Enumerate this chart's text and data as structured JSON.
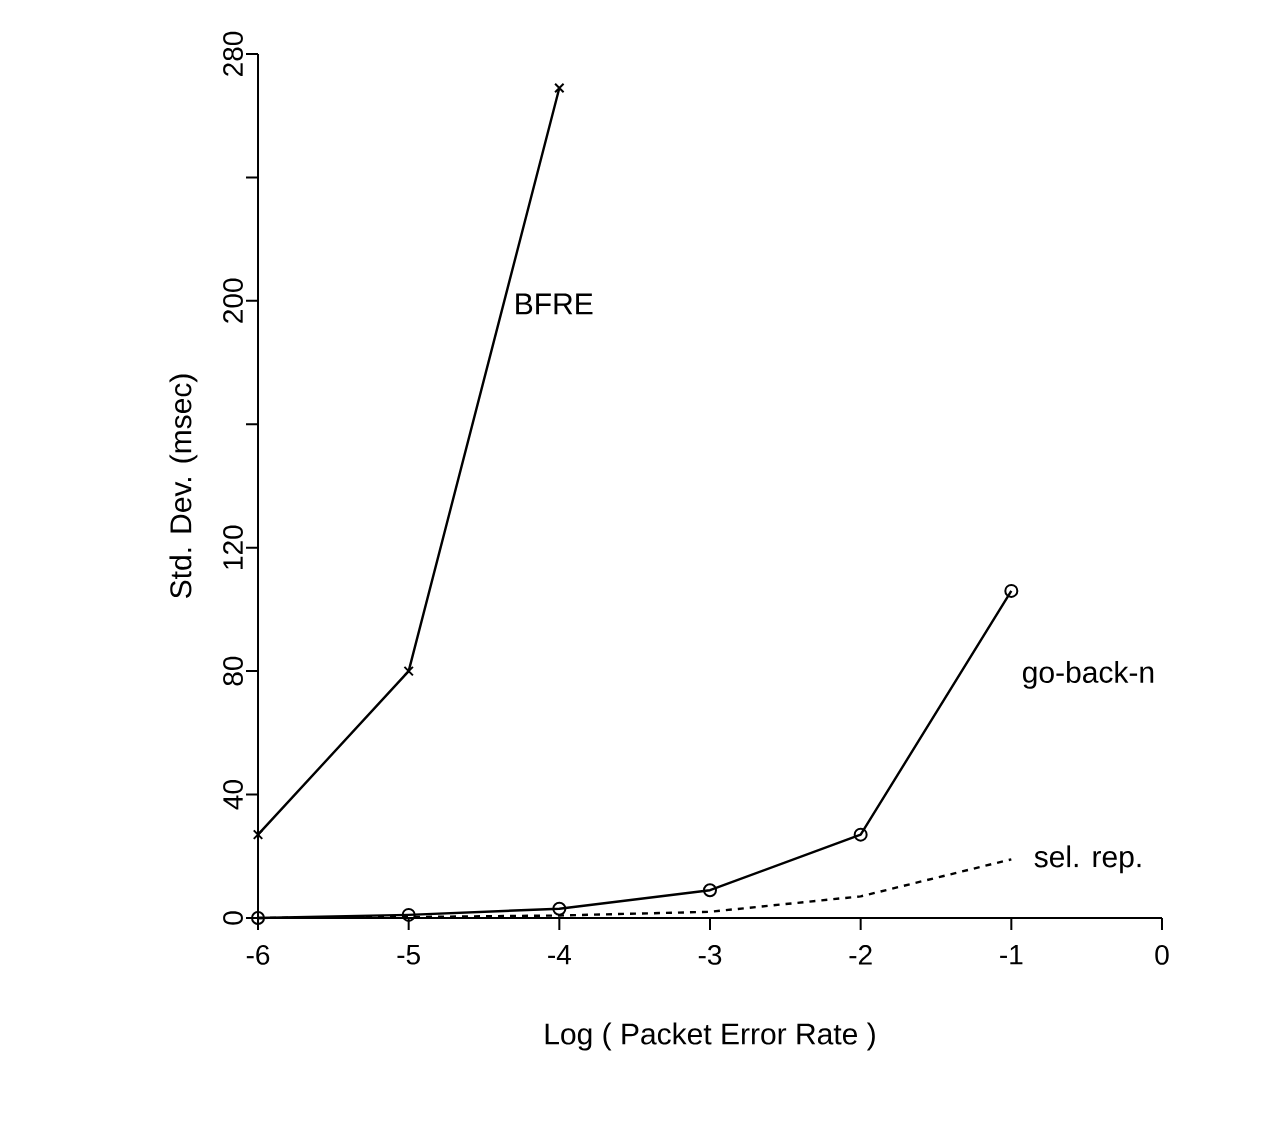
{
  "chart_data": {
    "type": "line",
    "xlabel": "Log ( Packet Error Rate )",
    "ylabel": "Std. Dev. (msec)",
    "x": [
      -6,
      -5,
      -4,
      -3,
      -2,
      -1
    ],
    "series": [
      {
        "name": "BFRE",
        "color": "#000000",
        "values": [
          27,
          80,
          269,
          null,
          null,
          null
        ],
        "marker": "cross",
        "line_style": "solid"
      },
      {
        "name": "go-back-n",
        "color": "#000000",
        "values": [
          0,
          1,
          3,
          9,
          27,
          106
        ],
        "marker": "circle",
        "line_style": "solid"
      },
      {
        "name": "sel. rep.",
        "color": "#000000",
        "values": [
          0,
          0.3,
          0.8,
          2,
          7,
          19
        ],
        "marker": "none",
        "line_style": "dashed"
      }
    ],
    "xlim": [
      -6,
      0
    ],
    "ylim": [
      0,
      280
    ],
    "xticks": [
      -6,
      -5,
      -4,
      -3,
      -2,
      -1,
      0
    ],
    "yticks": [
      0,
      40,
      80,
      120,
      {
        "value": 160,
        "label": null
      },
      200,
      {
        "value": 240,
        "label": null
      },
      280
    ],
    "grid": false,
    "legend": false
  }
}
